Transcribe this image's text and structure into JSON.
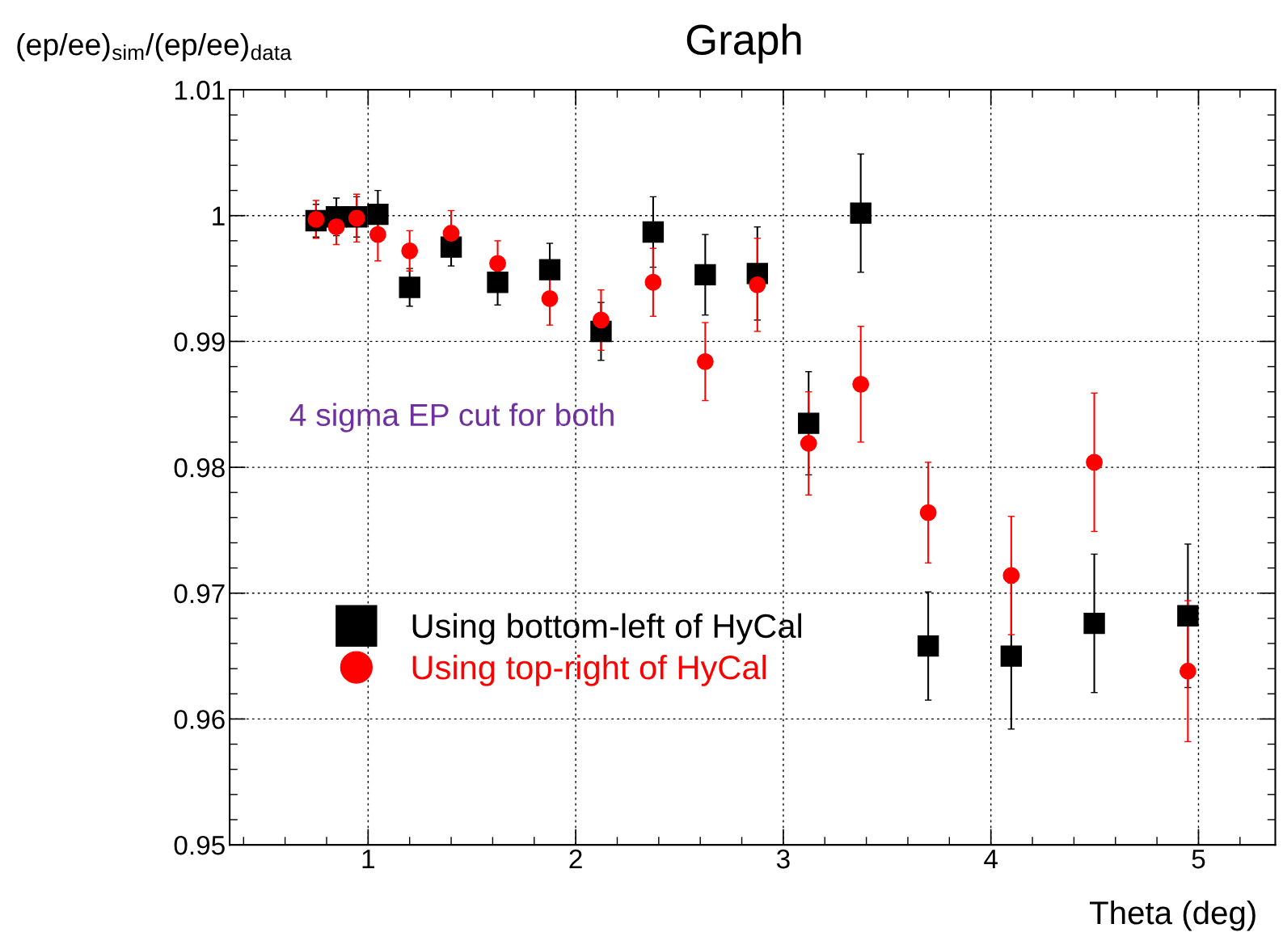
{
  "chart_data": {
    "type": "scatter",
    "title": "Graph",
    "xlabel": "Theta (deg)",
    "ylabel": "(ep/ee)$_{sim}$/(ep/ee)$_{data}$",
    "annotations": [
      "4 sigma EP cut for both"
    ],
    "xlim": [
      0.333,
      5.37
    ],
    "xticks": [
      1,
      2,
      3,
      4,
      5
    ],
    "ylim": [
      0.95,
      1.01
    ],
    "yticks": [
      0.95,
      0.96,
      0.97,
      0.98,
      0.99,
      1,
      1.01
    ],
    "grid": true,
    "legend": "bottom left",
    "series": [
      {
        "name": "Using bottom-left of HyCal",
        "color": "#000000",
        "marker": "square",
        "x": [
          0.749,
          0.847,
          0.945,
          1.047,
          1.2,
          1.4,
          1.624,
          1.875,
          2.122,
          2.373,
          2.624,
          2.875,
          3.122,
          3.373,
          3.698,
          4.098,
          4.498,
          4.949
        ],
        "values": [
          0.9996,
          0.9999,
          0.9999,
          1.0001,
          0.9943,
          0.9975,
          0.9947,
          0.9957,
          0.9908,
          0.9987,
          0.9953,
          0.9954,
          0.9835,
          1.0002,
          0.9658,
          0.965,
          0.9676,
          0.9682
        ],
        "errors": [
          0.0013,
          0.0015,
          0.0016,
          0.0019,
          0.0015,
          0.0015,
          0.0018,
          0.0021,
          0.0023,
          0.0028,
          0.0032,
          0.0037,
          0.0041,
          0.0047,
          0.0043,
          0.0058,
          0.0055,
          0.0057
        ]
      },
      {
        "name": "Using top-right of HyCal",
        "color": "#ff0000",
        "marker": "circle",
        "x": [
          0.749,
          0.847,
          0.945,
          1.047,
          1.2,
          1.4,
          1.624,
          1.875,
          2.122,
          2.373,
          2.624,
          2.875,
          3.122,
          3.373,
          3.698,
          4.098,
          4.498,
          4.949
        ],
        "values": [
          0.9997,
          0.9991,
          0.9998,
          0.9985,
          0.9972,
          0.9986,
          0.9962,
          0.9934,
          0.9917,
          0.9947,
          0.9884,
          0.9945,
          0.9819,
          0.9866,
          0.9764,
          0.9714,
          0.9804,
          0.9638
        ],
        "errors": [
          0.0015,
          0.0014,
          0.0019,
          0.0021,
          0.0016,
          0.0018,
          0.0018,
          0.0021,
          0.0024,
          0.0027,
          0.0031,
          0.0037,
          0.0041,
          0.0046,
          0.004,
          0.0047,
          0.0055,
          0.0056
        ]
      }
    ]
  }
}
